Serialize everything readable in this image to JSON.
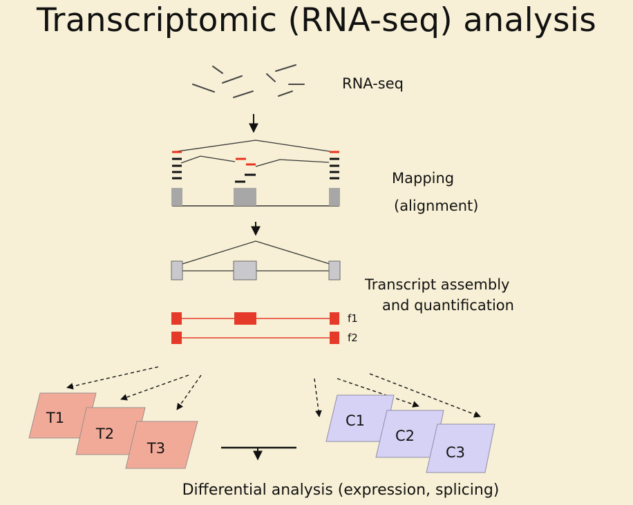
{
  "title": "Transcriptomic (RNA-seq) analysis",
  "steps": {
    "rnaseq": "RNA-seq",
    "mapping_line1": "Mapping",
    "mapping_line2": "(alignment)",
    "assembly_line1": "Transcript assembly",
    "assembly_line2": "and quantification"
  },
  "isoforms": [
    "f1",
    "f2"
  ],
  "treatment_samples": [
    "T1",
    "T2",
    "T3"
  ],
  "control_samples": [
    "C1",
    "C2",
    "C3"
  ],
  "footer": "Differential analysis (expression, splicing)",
  "colors": {
    "background": "#f7f0d6",
    "treatment_fill": "#f2aa98",
    "control_fill": "#d6d2f6",
    "isoform_red": "#e53a2a",
    "exon_gray": "#a7a7a7",
    "read_red": "#e8321e"
  }
}
